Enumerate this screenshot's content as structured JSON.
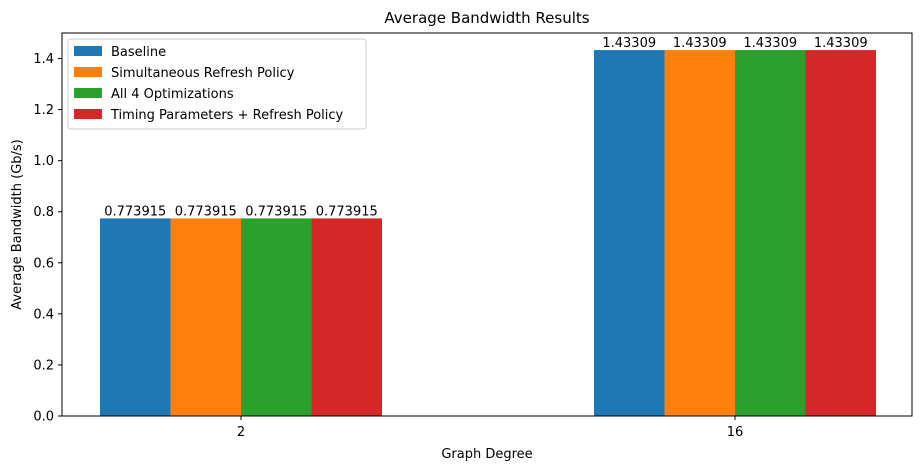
{
  "chart_data": {
    "type": "bar",
    "title": "Average Bandwidth Results",
    "xlabel": "Graph Degree",
    "ylabel": "Average Bandwidth (Gb/s)",
    "categories": [
      "2",
      "16"
    ],
    "ylim": [
      0,
      1.5
    ],
    "yticks": [
      0.0,
      0.2,
      0.4,
      0.6,
      0.8,
      1.0,
      1.2,
      1.4
    ],
    "ytick_labels": [
      "0.0",
      "0.2",
      "0.4",
      "0.6",
      "0.8",
      "1.0",
      "1.2",
      "1.4"
    ],
    "grid": false,
    "legend_position": "top-left",
    "series": [
      {
        "name": "Baseline",
        "color": "#1f77b4",
        "values": [
          0.773915,
          1.43309
        ],
        "labels": [
          "0.773915",
          "1.43309"
        ]
      },
      {
        "name": "Simultaneous Refresh Policy",
        "color": "#ff7f0e",
        "values": [
          0.773915,
          1.43309
        ],
        "labels": [
          "0.773915",
          "1.43309"
        ]
      },
      {
        "name": "All 4 Optimizations",
        "color": "#2ca02c",
        "values": [
          0.773915,
          1.43309
        ],
        "labels": [
          "0.773915",
          "1.43309"
        ]
      },
      {
        "name": "Timing Parameters + Refresh Policy",
        "color": "#d62728",
        "values": [
          0.773915,
          1.43309
        ],
        "labels": [
          "0.773915",
          "1.43309"
        ]
      }
    ]
  }
}
